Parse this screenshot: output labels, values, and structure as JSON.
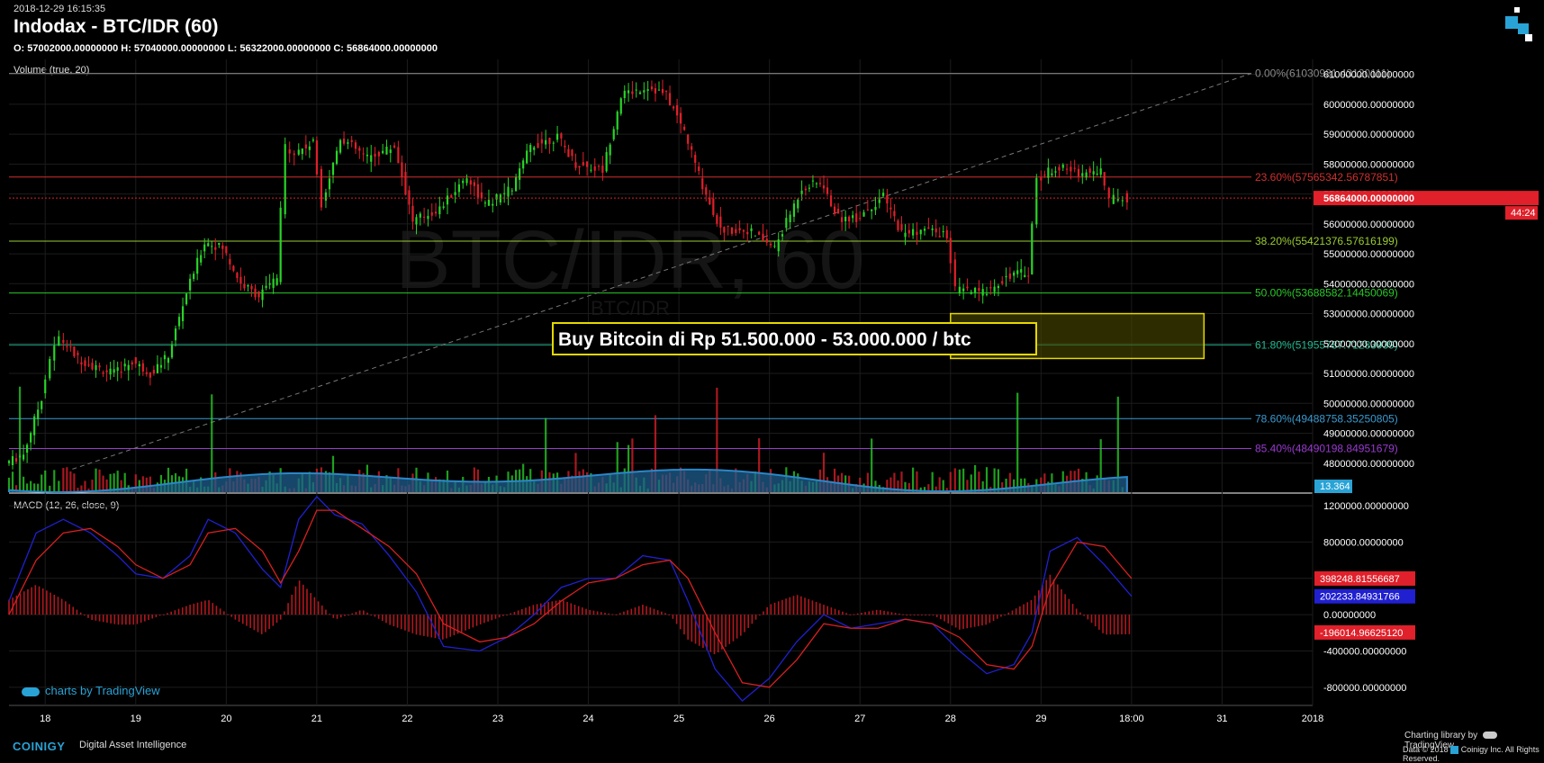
{
  "header": {
    "timestamp": "2018-12-29 16:15:35",
    "title": "Indodax - BTC/IDR (60)",
    "ohlc": "O: 57002000.00000000 H: 57040000.00000000 L: 56322000.00000000 C: 56864000.00000000"
  },
  "watermark": {
    "main": "BTC/IDR, 60",
    "sub": "BTC/IDR"
  },
  "footer": {
    "tradingview": "charts by TradingView",
    "brand": "COINIGY",
    "tagline": "Digital Asset Intelligence",
    "library": "Charting library by",
    "library_brand": "TradingView",
    "copyright": "Data © 2018",
    "copyright2": "Coinigy Inc. All Rights Reserved."
  },
  "colors": {
    "up": "#29d428",
    "down": "#e0202a",
    "macd_line": "#2020d0",
    "signal_line": "#d82020",
    "volume_ma": "#2a87c8",
    "accent": "#29a3d6"
  },
  "chart_data": [
    {
      "type": "candlestick",
      "pane": "price",
      "ylim": [
        47000000,
        61500000
      ],
      "y_ticks": [
        "61000000.00000000",
        "60000000.00000000",
        "59000000.00000000",
        "58000000.00000000",
        "57000000.00000000",
        "56000000.00000000",
        "55000000.00000000",
        "54000000.00000000",
        "53000000.00000000",
        "52000000.00000000",
        "51000000.00000000",
        "50000000.00000000",
        "49000000.00000000",
        "48000000.00000000"
      ],
      "x_ticks": [
        "18",
        "19",
        "20",
        "21",
        "22",
        "23",
        "24",
        "25",
        "26",
        "27",
        "28",
        "29",
        "18:00",
        "31",
        "2018"
      ],
      "last_price_label": "56864000.00000000",
      "countdown_label": "44:24",
      "close_series": [
        [
          17.6,
          48000000
        ],
        [
          17.8,
          48300000
        ],
        [
          18.0,
          50200000
        ],
        [
          18.1,
          51500000
        ],
        [
          18.2,
          52200000
        ],
        [
          18.4,
          51500000
        ],
        [
          18.6,
          51200000
        ],
        [
          18.8,
          51000000
        ],
        [
          19.0,
          51400000
        ],
        [
          19.2,
          51000000
        ],
        [
          19.4,
          51600000
        ],
        [
          19.6,
          53700000
        ],
        [
          19.8,
          55400000
        ],
        [
          20.0,
          55200000
        ],
        [
          20.2,
          54000000
        ],
        [
          20.4,
          53600000
        ],
        [
          20.6,
          54200000
        ],
        [
          20.7,
          58600000
        ],
        [
          20.8,
          58400000
        ],
        [
          21.0,
          58700000
        ],
        [
          21.1,
          56700000
        ],
        [
          21.3,
          58900000
        ],
        [
          21.6,
          58200000
        ],
        [
          21.9,
          58600000
        ],
        [
          22.1,
          56100000
        ],
        [
          22.4,
          56500000
        ],
        [
          22.7,
          57600000
        ],
        [
          22.9,
          56600000
        ],
        [
          23.2,
          57200000
        ],
        [
          23.4,
          58600000
        ],
        [
          23.7,
          58900000
        ],
        [
          23.9,
          58000000
        ],
        [
          24.2,
          57800000
        ],
        [
          24.4,
          60300000
        ],
        [
          24.7,
          60600000
        ],
        [
          24.9,
          60300000
        ],
        [
          25.1,
          59100000
        ],
        [
          25.3,
          57300000
        ],
        [
          25.5,
          55800000
        ],
        [
          25.8,
          55800000
        ],
        [
          26.1,
          55200000
        ],
        [
          26.4,
          57200000
        ],
        [
          26.6,
          57400000
        ],
        [
          26.8,
          56200000
        ],
        [
          27.0,
          56200000
        ],
        [
          27.3,
          56900000
        ],
        [
          27.5,
          55700000
        ],
        [
          27.8,
          55800000
        ],
        [
          28.0,
          55600000
        ],
        [
          28.1,
          53800000
        ],
        [
          28.4,
          53700000
        ],
        [
          28.7,
          54300000
        ],
        [
          28.9,
          54400000
        ],
        [
          29.0,
          57500000
        ],
        [
          29.2,
          57900000
        ],
        [
          29.5,
          57700000
        ],
        [
          29.7,
          57800000
        ],
        [
          29.8,
          56800000
        ],
        [
          29.9,
          56900000
        ],
        [
          30.0,
          56864000
        ]
      ]
    },
    {
      "type": "fibonacci",
      "levels": [
        {
          "label": "0.00%(61030931.43120111)",
          "value": 61030931.43,
          "color": "#888888"
        },
        {
          "label": "23.60%(57565342.56787851)",
          "value": 57565342.57,
          "color": "#d03030"
        },
        {
          "label": "38.20%(55421376.57616199)",
          "value": 55421376.58,
          "color": "#9acd32"
        },
        {
          "label": "50.00%(53688582.14450069)",
          "value": 53688582.14,
          "color": "#29c828"
        },
        {
          "label": "61.80%(51955787.71283939)",
          "value": 51955787.71,
          "color": "#20b890"
        },
        {
          "label": "78.60%(49488758.35250805)",
          "value": 49488758.35,
          "color": "#3a9ad0"
        },
        {
          "label": "85.40%(48490198.84951679)",
          "value": 48490198.85,
          "color": "#9a3ad0"
        }
      ],
      "annotation": "Buy Bitcoin di Rp 51.500.000 - 53.000.000 / btc",
      "zone": [
        51500000,
        53000000
      ]
    },
    {
      "type": "bar",
      "pane": "volume",
      "title": "Volume (true, 20)",
      "last_value_label": "13.364"
    },
    {
      "type": "line",
      "pane": "macd",
      "title": "MACD (12, 26, close, 9)",
      "ylim": [
        -1000000,
        1300000
      ],
      "y_ticks": [
        "1200000.00000000",
        "800000.00000000",
        "400000.00000000",
        "0.00000000",
        "-400000.00000000",
        "-800000.00000000"
      ],
      "value_labels": [
        {
          "text": "398248.81556687",
          "color": "#e0202a"
        },
        {
          "text": "202233.84931766",
          "color": "#2020d0"
        },
        {
          "text": "-196014.96625120",
          "color": "#e0202a"
        }
      ],
      "series": [
        {
          "name": "MACD",
          "points": [
            [
              17.6,
              150000
            ],
            [
              17.9,
              900000
            ],
            [
              18.2,
              1050000
            ],
            [
              18.5,
              900000
            ],
            [
              18.8,
              650000
            ],
            [
              19.0,
              450000
            ],
            [
              19.3,
              400000
            ],
            [
              19.6,
              650000
            ],
            [
              19.8,
              1050000
            ],
            [
              20.1,
              900000
            ],
            [
              20.4,
              500000
            ],
            [
              20.6,
              300000
            ],
            [
              20.8,
              1050000
            ],
            [
              21.0,
              1300000
            ],
            [
              21.2,
              1100000
            ],
            [
              21.5,
              1000000
            ],
            [
              21.8,
              650000
            ],
            [
              22.1,
              250000
            ],
            [
              22.4,
              -350000
            ],
            [
              22.8,
              -400000
            ],
            [
              23.1,
              -250000
            ],
            [
              23.4,
              0
            ],
            [
              23.7,
              300000
            ],
            [
              24.0,
              400000
            ],
            [
              24.3,
              400000
            ],
            [
              24.6,
              650000
            ],
            [
              24.9,
              600000
            ],
            [
              25.1,
              150000
            ],
            [
              25.4,
              -600000
            ],
            [
              25.7,
              -950000
            ],
            [
              26.0,
              -700000
            ],
            [
              26.3,
              -300000
            ],
            [
              26.6,
              0
            ],
            [
              26.9,
              -150000
            ],
            [
              27.2,
              -100000
            ],
            [
              27.5,
              -50000
            ],
            [
              27.8,
              -100000
            ],
            [
              28.1,
              -400000
            ],
            [
              28.4,
              -650000
            ],
            [
              28.7,
              -550000
            ],
            [
              28.9,
              -200000
            ],
            [
              29.1,
              700000
            ],
            [
              29.4,
              850000
            ],
            [
              29.7,
              550000
            ],
            [
              30.0,
              202233
            ]
          ]
        },
        {
          "name": "Signal",
          "points": [
            [
              17.6,
              0
            ],
            [
              17.9,
              600000
            ],
            [
              18.2,
              900000
            ],
            [
              18.5,
              950000
            ],
            [
              18.8,
              750000
            ],
            [
              19.0,
              550000
            ],
            [
              19.3,
              400000
            ],
            [
              19.6,
              550000
            ],
            [
              19.8,
              900000
            ],
            [
              20.1,
              950000
            ],
            [
              20.4,
              700000
            ],
            [
              20.6,
              350000
            ],
            [
              20.8,
              700000
            ],
            [
              21.0,
              1150000
            ],
            [
              21.2,
              1150000
            ],
            [
              21.5,
              950000
            ],
            [
              21.8,
              750000
            ],
            [
              22.1,
              450000
            ],
            [
              22.4,
              -100000
            ],
            [
              22.8,
              -300000
            ],
            [
              23.1,
              -250000
            ],
            [
              23.4,
              -100000
            ],
            [
              23.7,
              150000
            ],
            [
              24.0,
              350000
            ],
            [
              24.3,
              400000
            ],
            [
              24.6,
              550000
            ],
            [
              24.9,
              600000
            ],
            [
              25.1,
              400000
            ],
            [
              25.4,
              -200000
            ],
            [
              25.7,
              -750000
            ],
            [
              26.0,
              -800000
            ],
            [
              26.3,
              -500000
            ],
            [
              26.6,
              -100000
            ],
            [
              26.9,
              -150000
            ],
            [
              27.2,
              -150000
            ],
            [
              27.5,
              -50000
            ],
            [
              27.8,
              -100000
            ],
            [
              28.1,
              -250000
            ],
            [
              28.4,
              -550000
            ],
            [
              28.7,
              -600000
            ],
            [
              28.9,
              -350000
            ],
            [
              29.1,
              300000
            ],
            [
              29.4,
              800000
            ],
            [
              29.7,
              750000
            ],
            [
              30.0,
              398248
            ]
          ]
        }
      ]
    }
  ]
}
